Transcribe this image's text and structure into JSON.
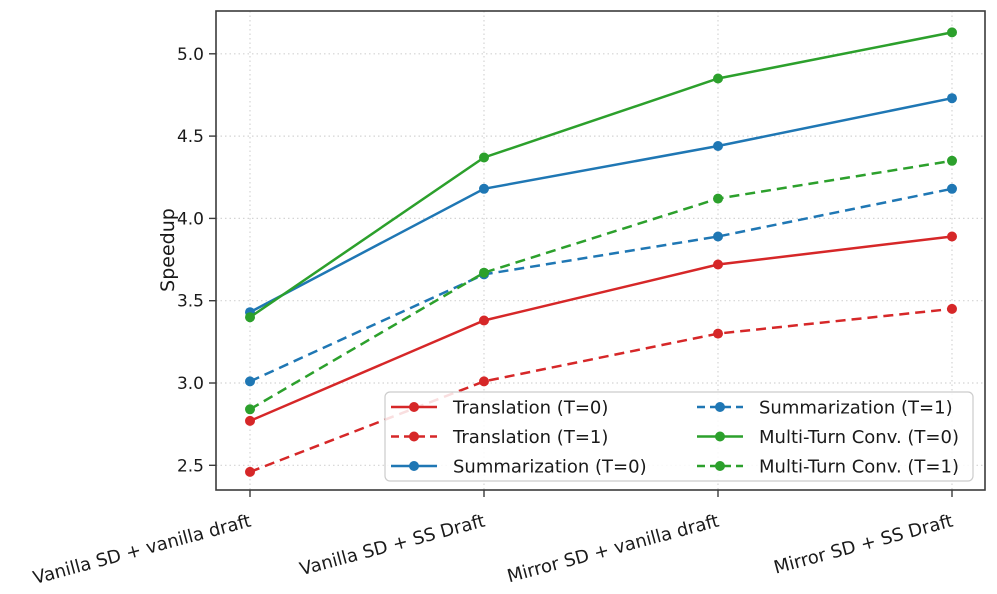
{
  "chart_data": {
    "type": "line",
    "title": "",
    "xlabel": "",
    "ylabel": "Speedup",
    "categories": [
      "Vanilla SD + vanilla draft",
      "Vanilla SD + SS Draft",
      "Mirror SD + vanilla draft",
      "Mirror SD + SS Draft"
    ],
    "series": [
      {
        "name": "Translation (T=0)",
        "color": "#d62728",
        "style": "solid",
        "values": [
          2.77,
          3.38,
          3.72,
          3.89
        ]
      },
      {
        "name": "Translation (T=1)",
        "color": "#d62728",
        "style": "dashed",
        "values": [
          2.46,
          3.01,
          3.3,
          3.45
        ]
      },
      {
        "name": "Summarization (T=0)",
        "color": "#1f77b4",
        "style": "solid",
        "values": [
          3.43,
          4.18,
          4.44,
          4.73
        ]
      },
      {
        "name": "Summarization (T=1)",
        "color": "#1f77b4",
        "style": "dashed",
        "values": [
          3.01,
          3.66,
          3.89,
          4.18
        ]
      },
      {
        "name": "Multi-Turn Conv. (T=0)",
        "color": "#2ca02c",
        "style": "solid",
        "values": [
          3.4,
          4.37,
          4.85,
          5.13
        ]
      },
      {
        "name": "Multi-Turn Conv. (T=1)",
        "color": "#2ca02c",
        "style": "dashed",
        "values": [
          2.84,
          3.67,
          4.12,
          4.35
        ]
      }
    ],
    "yticks": [
      2.5,
      3.0,
      3.5,
      4.0,
      4.5,
      5.0
    ],
    "ylim": [
      2.35,
      5.26
    ],
    "grid": true,
    "grid_style": "dotted",
    "legend": {
      "columns": 2,
      "position": "lower center"
    },
    "colors": {
      "red": "#d62728",
      "blue": "#1f77b4",
      "green": "#2ca02c",
      "grid": "#d4d4d4",
      "spine": "#3b3b3b",
      "text": "#1a1a1a",
      "legend_border": "#cccccc"
    }
  }
}
